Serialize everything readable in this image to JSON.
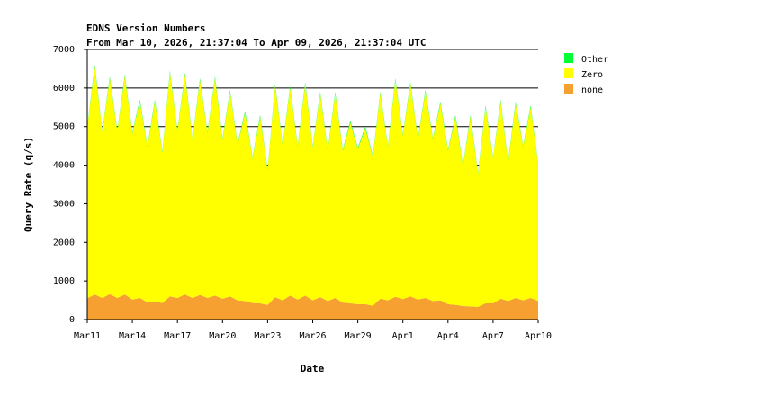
{
  "chart_data": {
    "type": "stacked_area",
    "title": "EDNS Version Numbers",
    "subtitle": "From Mar 10, 2026, 21:37:04 To Apr 09, 2026, 21:37:04 UTC",
    "xlabel": "Date",
    "ylabel": "Query Rate (q/s)",
    "x": [
      0,
      0.5,
      1,
      1.5,
      2,
      2.5,
      3,
      3.5,
      4,
      4.5,
      5,
      5.5,
      6,
      6.5,
      7,
      7.5,
      8,
      8.5,
      9,
      9.5,
      10,
      10.5,
      11,
      11.5,
      12,
      12.5,
      13,
      13.5,
      14,
      14.5,
      15,
      15.5,
      16,
      16.5,
      17,
      17.5,
      18,
      18.5,
      19,
      19.5,
      20,
      20.5,
      21,
      21.5,
      22,
      22.5,
      23,
      23.5,
      24,
      24.5,
      25,
      25.5,
      26,
      26.5,
      27,
      27.5,
      28,
      28.5,
      29,
      29.5,
      30
    ],
    "series": [
      {
        "name": "none",
        "color": "#f5a030",
        "values": [
          550,
          650,
          560,
          660,
          560,
          650,
          520,
          560,
          450,
          470,
          430,
          600,
          560,
          650,
          560,
          640,
          560,
          620,
          540,
          600,
          500,
          480,
          430,
          420,
          380,
          580,
          500,
          620,
          520,
          620,
          500,
          580,
          480,
          560,
          440,
          420,
          400,
          400,
          360,
          540,
          500,
          590,
          530,
          600,
          520,
          560,
          480,
          500,
          400,
          380,
          350,
          340,
          330,
          420,
          420,
          540,
          480,
          560,
          500,
          560,
          480
        ]
      },
      {
        "name": "Zero",
        "color": "#ffff00",
        "values": [
          4420,
          5900,
          4310,
          5590,
          4310,
          5650,
          4300,
          5090,
          4020,
          5180,
          3890,
          5800,
          4310,
          5700,
          4110,
          5560,
          4260,
          5630,
          4130,
          5300,
          4020,
          4870,
          3740,
          4830,
          3490,
          5470,
          4020,
          5380,
          3950,
          5480,
          3970,
          5270,
          3890,
          5290,
          3930,
          4680,
          4020,
          4550,
          3860,
          5310,
          3970,
          5610,
          4240,
          5500,
          4150,
          5340,
          4190,
          5100,
          3970,
          4870,
          3620,
          4910,
          3440,
          5080,
          3750,
          5110,
          3590,
          5040,
          3970,
          4940,
          3540
        ]
      },
      {
        "name": "Other",
        "color": "#00ff33",
        "values": [
          30,
          50,
          30,
          50,
          30,
          50,
          30,
          50,
          30,
          50,
          30,
          50,
          30,
          50,
          30,
          50,
          30,
          50,
          30,
          50,
          30,
          50,
          30,
          50,
          30,
          50,
          30,
          50,
          30,
          50,
          30,
          50,
          30,
          50,
          30,
          50,
          30,
          50,
          30,
          50,
          30,
          50,
          30,
          50,
          30,
          50,
          30,
          50,
          30,
          50,
          30,
          50,
          30,
          50,
          30,
          50,
          30,
          50,
          30,
          50,
          30
        ]
      }
    ],
    "xlim": [
      0,
      30
    ],
    "xticks": [
      {
        "value": 0,
        "label": "Mar11"
      },
      {
        "value": 3,
        "label": "Mar14"
      },
      {
        "value": 6,
        "label": "Mar17"
      },
      {
        "value": 9,
        "label": "Mar20"
      },
      {
        "value": 12,
        "label": "Mar23"
      },
      {
        "value": 15,
        "label": "Mar26"
      },
      {
        "value": 18,
        "label": "Mar29"
      },
      {
        "value": 21,
        "label": "Apr1"
      },
      {
        "value": 24,
        "label": "Apr4"
      },
      {
        "value": 27,
        "label": "Apr7"
      },
      {
        "value": 30,
        "label": "Apr10"
      }
    ],
    "ylim": [
      0,
      7000
    ],
    "yticks": [
      0,
      1000,
      2000,
      3000,
      4000,
      5000,
      6000,
      7000
    ],
    "grid": true,
    "legend": "right"
  }
}
